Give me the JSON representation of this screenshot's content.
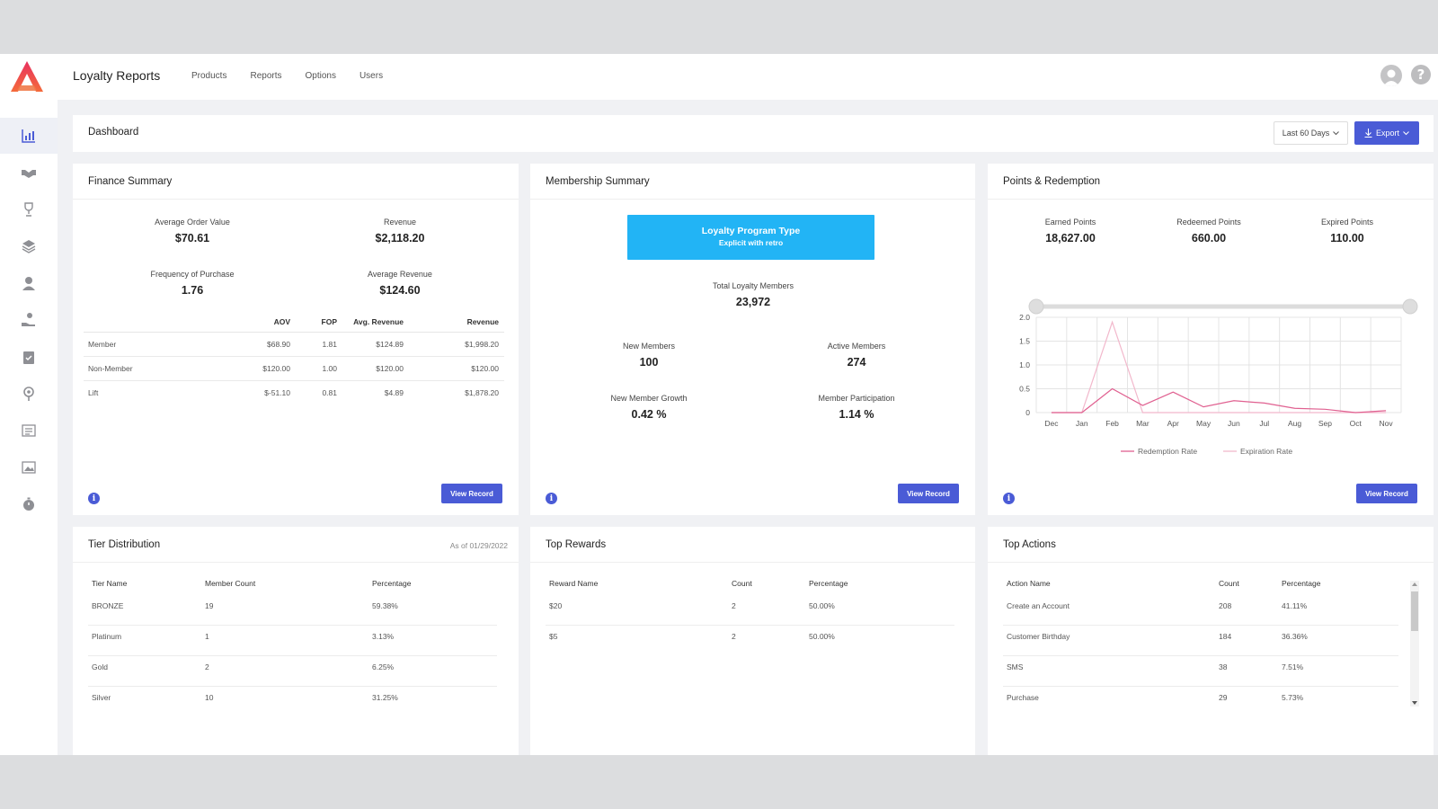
{
  "app": {
    "title": "Loyalty Reports",
    "nav": [
      "Products",
      "Reports",
      "Options",
      "Users"
    ]
  },
  "colors": {
    "accent": "#4a5bd6",
    "loyalty_box": "#22b4f5",
    "redemption": "#e06090",
    "expiration": "#f2b8cc"
  },
  "sidebar": {
    "icons": [
      "bar-chart-icon",
      "handshake-icon",
      "trophy-icon",
      "layers-icon",
      "user-icon",
      "hand-coin-icon",
      "clipboard-check-icon",
      "location-icon",
      "list-icon",
      "image-icon",
      "stopwatch-icon"
    ],
    "active_index": 0
  },
  "dashboard": {
    "title": "Dashboard",
    "range": "Last 60 Days",
    "export_label": "Export"
  },
  "finance": {
    "title": "Finance Summary",
    "stats": [
      {
        "label": "Average Order Value",
        "value": "$70.61"
      },
      {
        "label": "Revenue",
        "value": "$2,118.20"
      },
      {
        "label": "Frequency of Purchase",
        "value": "1.76"
      },
      {
        "label": "Average Revenue",
        "value": "$124.60"
      }
    ],
    "columns": [
      "AOV",
      "FOP",
      "Avg. Revenue",
      "Revenue"
    ],
    "rows": [
      {
        "name": "Member",
        "aov": "$68.90",
        "fop": "1.81",
        "avg": "$124.89",
        "rev": "$1,998.20"
      },
      {
        "name": "Non-Member",
        "aov": "$120.00",
        "fop": "1.00",
        "avg": "$120.00",
        "rev": "$120.00"
      },
      {
        "name": "Lift",
        "aov": "$-51.10",
        "fop": "0.81",
        "avg": "$4.89",
        "rev": "$1,878.20"
      }
    ],
    "button": "View Record"
  },
  "membership": {
    "title": "Membership Summary",
    "program_type_label": "Loyalty Program Type",
    "program_type_value": "Explicit with retro",
    "stats": [
      {
        "label": "Total Loyalty Members",
        "value": "23,972"
      },
      {
        "label": "New Members",
        "value": "100"
      },
      {
        "label": "Active Members",
        "value": "274"
      },
      {
        "label": "New Member Growth",
        "value": "0.42 %"
      },
      {
        "label": "Member Participation",
        "value": "1.14 %"
      }
    ],
    "button": "View Record"
  },
  "points": {
    "title": "Points & Redemption",
    "stats": [
      {
        "label": "Earned Points",
        "value": "18,627.00"
      },
      {
        "label": "Redeemed Points",
        "value": "660.00"
      },
      {
        "label": "Expired Points",
        "value": "110.00"
      }
    ],
    "button": "View Record"
  },
  "chart_data": {
    "type": "line",
    "categories": [
      "Dec",
      "Jan",
      "Feb",
      "Mar",
      "Apr",
      "May",
      "Jun",
      "Jul",
      "Aug",
      "Sep",
      "Oct",
      "Nov"
    ],
    "series": [
      {
        "name": "Redemption Rate",
        "values": [
          0,
          0,
          0.5,
          0.15,
          0.43,
          0.12,
          0.25,
          0.2,
          0.09,
          0.07,
          0,
          0.04
        ]
      },
      {
        "name": "Expiration Rate",
        "values": [
          0,
          0,
          1.9,
          0,
          0,
          0,
          0,
          0,
          0,
          0,
          0,
          0
        ]
      }
    ],
    "yticks": [
      "2.0",
      "1.5",
      "1.0",
      "0.5",
      "0"
    ],
    "ylim": [
      0,
      2.0
    ],
    "grid": true,
    "legend": "bottom"
  },
  "tiers": {
    "title": "Tier Distribution",
    "as_of": "As of 01/29/2022",
    "columns": [
      "Tier Name",
      "Member Count",
      "Percentage"
    ],
    "rows": [
      {
        "name": "BRONZE",
        "count": "19",
        "pct": "59.38%"
      },
      {
        "name": "Platinum",
        "count": "1",
        "pct": "3.13%"
      },
      {
        "name": "Gold",
        "count": "2",
        "pct": "6.25%"
      },
      {
        "name": "Silver",
        "count": "10",
        "pct": "31.25%"
      }
    ]
  },
  "rewards": {
    "title": "Top Rewards",
    "columns": [
      "Reward Name",
      "Count",
      "Percentage"
    ],
    "rows": [
      {
        "name": "$20",
        "count": "2",
        "pct": "50.00%"
      },
      {
        "name": "$5",
        "count": "2",
        "pct": "50.00%"
      }
    ]
  },
  "actions": {
    "title": "Top Actions",
    "columns": [
      "Action Name",
      "Count",
      "Percentage"
    ],
    "rows": [
      {
        "name": "Create an Account",
        "count": "208",
        "pct": "41.11%"
      },
      {
        "name": "Customer Birthday",
        "count": "184",
        "pct": "36.36%"
      },
      {
        "name": "SMS",
        "count": "38",
        "pct": "7.51%"
      },
      {
        "name": "Purchase",
        "count": "29",
        "pct": "5.73%"
      }
    ]
  }
}
